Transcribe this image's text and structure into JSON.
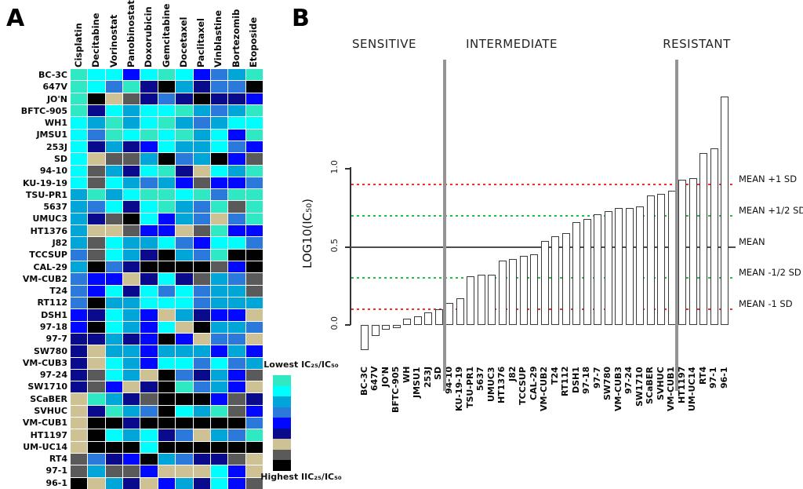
{
  "figure": {
    "panel_a_letter": "A",
    "panel_b_letter": "B"
  },
  "chart_data": [
    {
      "type": "heatmap",
      "description": "Drug sensitivity heatmap of bladder cancer cell lines (IC25/IC50 ratios)",
      "columns": [
        "Cisplatin",
        "Decitabine",
        "Vorinostat",
        "Panobinostat",
        "Doxorubicin",
        "Gemcitabine",
        "Docetaxel",
        "Paclitaxel",
        "Vinblastine",
        "Bortezomib",
        "Etoposide"
      ],
      "rows": [
        "BC-3C",
        "647V",
        "JO'N",
        "BFTC-905",
        "WH1",
        "JMSU1",
        "253J",
        "SD",
        "94-10",
        "KU-19-19",
        "TSU-PR1",
        "5637",
        "UMUC3",
        "HT1376",
        "J82",
        "TCCSUP",
        "CAL-29",
        "VM-CUB2",
        "T24",
        "RT112",
        "DSH1",
        "97-18",
        "97-7",
        "SW780",
        "VM-CUB3",
        "97-24",
        "SW1710",
        "SCaBER",
        "SVHUC",
        "VM-CUB1",
        "HT1197",
        "UM-UC14",
        "RT4",
        "97-1",
        "96-1"
      ],
      "palette": {
        "T": "#2EE9C4",
        "C": "#00FEFE",
        "CB": "#00A6D8",
        "MB": "#2B79DA",
        "B": "#0008FF",
        "N": "#0A0A8C",
        "TA": "#CEC193",
        "G": "#5A5A5A",
        "K": "#010101"
      },
      "grid": [
        [
          "T",
          "C",
          "C",
          "B",
          "C",
          "T",
          "C",
          "B",
          "MB",
          "CB",
          "T"
        ],
        [
          "T",
          "C",
          "MB",
          "T",
          "N",
          "K",
          "CB",
          "N",
          "MB",
          "MB",
          "K"
        ],
        [
          "T",
          "K",
          "TA",
          "G",
          "N",
          "MB",
          "N",
          "K",
          "N",
          "N",
          "B"
        ],
        [
          "T",
          "N",
          "C",
          "CB",
          "C",
          "C",
          "T",
          "CB",
          "MB",
          "CB",
          "T"
        ],
        [
          "C",
          "CB",
          "T",
          "CB",
          "C",
          "T",
          "CB",
          "MB",
          "CB",
          "C",
          "C"
        ],
        [
          "C",
          "MB",
          "T",
          "C",
          "T",
          "C",
          "T",
          "CB",
          "C",
          "B",
          "T"
        ],
        [
          "C",
          "N",
          "CB",
          "N",
          "B",
          "C",
          "CB",
          "CB",
          "C",
          "MB",
          "B"
        ],
        [
          "C",
          "TA",
          "G",
          "G",
          "CB",
          "K",
          "MB",
          "CB",
          "K",
          "B",
          "G"
        ],
        [
          "C",
          "G",
          "CB",
          "N",
          "C",
          "T",
          "N",
          "TA",
          "C",
          "CB",
          "T"
        ],
        [
          "C",
          "G",
          "C",
          "CB",
          "MB",
          "CB",
          "B",
          "G",
          "B",
          "B",
          "MB"
        ],
        [
          "CB",
          "T",
          "CB",
          "C",
          "T",
          "T",
          "C",
          "T",
          "MB",
          "T",
          "T"
        ],
        [
          "CB",
          "MB",
          "C",
          "N",
          "C",
          "T",
          "CB",
          "MB",
          "T",
          "G",
          "T"
        ],
        [
          "CB",
          "N",
          "G",
          "K",
          "C",
          "B",
          "CB",
          "MB",
          "TA",
          "MB",
          "T"
        ],
        [
          "CB",
          "TA",
          "TA",
          "G",
          "B",
          "B",
          "TA",
          "G",
          "T",
          "B",
          "B"
        ],
        [
          "CB",
          "G",
          "C",
          "CB",
          "CB",
          "C",
          "MB",
          "B",
          "C",
          "C",
          "MB"
        ],
        [
          "MB",
          "G",
          "C",
          "CB",
          "N",
          "K",
          "CB",
          "MB",
          "T",
          "K",
          "K"
        ],
        [
          "CB",
          "K",
          "MB",
          "N",
          "K",
          "K",
          "K",
          "K",
          "G",
          "B",
          "K"
        ],
        [
          "MB",
          "B",
          "B",
          "TA",
          "N",
          "C",
          "N",
          "G",
          "CB",
          "MB",
          "G"
        ],
        [
          "MB",
          "B",
          "C",
          "N",
          "C",
          "MB",
          "C",
          "MB",
          "CB",
          "CB",
          "G"
        ],
        [
          "MB",
          "K",
          "CB",
          "CB",
          "C",
          "C",
          "C",
          "MB",
          "CB",
          "CB",
          "CB"
        ],
        [
          "B",
          "N",
          "C",
          "CB",
          "B",
          "TA",
          "CB",
          "N",
          "B",
          "B",
          "TA"
        ],
        [
          "B",
          "K",
          "C",
          "CB",
          "B",
          "C",
          "TA",
          "K",
          "CB",
          "CB",
          "MB"
        ],
        [
          "N",
          "N",
          "CB",
          "N",
          "B",
          "K",
          "B",
          "TA",
          "MB",
          "MB",
          "TA"
        ],
        [
          "N",
          "TA",
          "CB",
          "CB",
          "B",
          "CB",
          "CB",
          "CB",
          "B",
          "CB",
          "B"
        ],
        [
          "N",
          "TA",
          "C",
          "CB",
          "B",
          "C",
          "C",
          "MB",
          "C",
          "MB",
          "CB"
        ],
        [
          "N",
          "G",
          "C",
          "CB",
          "TA",
          "K",
          "MB",
          "N",
          "CB",
          "B",
          "G"
        ],
        [
          "N",
          "G",
          "B",
          "TA",
          "N",
          "K",
          "T",
          "MB",
          "CB",
          "B",
          "TA"
        ],
        [
          "TA",
          "T",
          "CB",
          "N",
          "G",
          "K",
          "K",
          "K",
          "B",
          "G",
          "N"
        ],
        [
          "TA",
          "N",
          "T",
          "CB",
          "MB",
          "K",
          "C",
          "CB",
          "T",
          "G",
          "B"
        ],
        [
          "TA",
          "K",
          "K",
          "N",
          "K",
          "K",
          "K",
          "K",
          "K",
          "K",
          "MB"
        ],
        [
          "TA",
          "K",
          "C",
          "CB",
          "C",
          "N",
          "MB",
          "TA",
          "CB",
          "MB",
          "T"
        ],
        [
          "TA",
          "K",
          "K",
          "K",
          "C",
          "K",
          "K",
          "K",
          "K",
          "K",
          "K"
        ],
        [
          "G",
          "MB",
          "N",
          "B",
          "K",
          "CB",
          "MB",
          "N",
          "N",
          "G",
          "TA"
        ],
        [
          "G",
          "CB",
          "G",
          "G",
          "B",
          "TA",
          "TA",
          "TA",
          "C",
          "B",
          "TA"
        ],
        [
          "K",
          "TA",
          "CB",
          "N",
          "TA",
          "B",
          "CB",
          "N",
          "C",
          "B",
          "G"
        ]
      ],
      "legend": {
        "top_label": "Lowest IC₂₅/IC₅₀",
        "bottom_label": "Highest IIC₂₅/IC₅₀",
        "scale_order": [
          "T",
          "C",
          "CB",
          "MB",
          "B",
          "N",
          "TA",
          "G",
          "K"
        ]
      }
    },
    {
      "type": "bar",
      "title": "",
      "ylabel": "LOG10(IC₅₀)",
      "yticks": [
        "0.0",
        "0.5",
        "1.0"
      ],
      "ylim": [
        -0.2,
        1.5
      ],
      "categories": [
        "BC-3C",
        "647V",
        "JO'N",
        "BFTC-905",
        "WH",
        "JMSU1",
        "253J",
        "SD",
        "94-10",
        "KU-19-19",
        "TSU-PR1",
        "5637",
        "UMUC3",
        "HT1376",
        "J82",
        "TCCSUP",
        "CAL-29",
        "VM-CUB2",
        "T24",
        "RT112",
        "DSH1",
        "97-18",
        "97-7",
        "SW780",
        "VM-CUB3",
        "97-24",
        "SW1710",
        "SCaBER",
        "SVHUC",
        "VM-CUB1",
        "HT1197",
        "UM-UC14",
        "RT4",
        "97-1",
        "96-1"
      ],
      "values": [
        -0.16,
        -0.07,
        -0.03,
        -0.02,
        0.04,
        0.055,
        0.08,
        0.1,
        0.14,
        0.17,
        0.31,
        0.32,
        0.32,
        0.41,
        0.42,
        0.44,
        0.45,
        0.54,
        0.57,
        0.59,
        0.66,
        0.68,
        0.71,
        0.73,
        0.75,
        0.75,
        0.76,
        0.83,
        0.84,
        0.86,
        0.93,
        0.94,
        1.1,
        1.13,
        1.46
      ],
      "groups": [
        {
          "label": "SENSITIVE",
          "first_index": 0,
          "last_index": 7
        },
        {
          "label": "INTERMEDIATE",
          "first_index": 8,
          "last_index": 29
        },
        {
          "label": "RESISTANT",
          "first_index": 30,
          "last_index": 34
        }
      ],
      "reference_lines": [
        {
          "label": "MEAN +1 SD",
          "value": 0.9,
          "style": "dashed",
          "color": "#FF2A2A"
        },
        {
          "label": "MEAN +1/2 SD",
          "value": 0.7,
          "style": "dashed",
          "color": "#1FBF4A"
        },
        {
          "label": "MEAN",
          "value": 0.5,
          "style": "solid",
          "color": "#4d4d4d"
        },
        {
          "label": "MEAN -1/2 SD",
          "value": 0.3,
          "style": "dashed",
          "color": "#1FBF4A"
        },
        {
          "label": "MEAN -1 SD",
          "value": 0.1,
          "style": "dashed",
          "color": "#FF2A2A"
        }
      ],
      "legend_position": "right"
    }
  ]
}
